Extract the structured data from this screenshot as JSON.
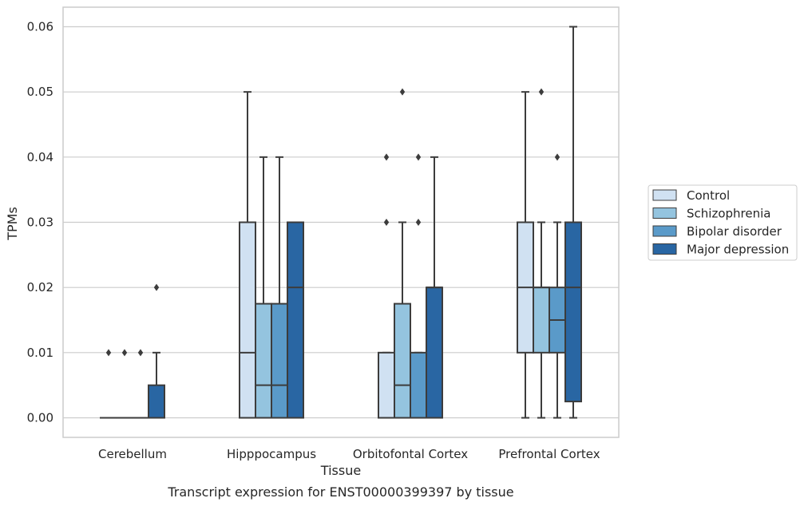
{
  "chart_data": {
    "type": "box",
    "title": "",
    "caption": "Transcript expression for ENST00000399397 by tissue",
    "xlabel": "Tissue",
    "ylabel": "TPMs",
    "ylim": [
      -0.003,
      0.063
    ],
    "yticks": [
      "0.00",
      "0.01",
      "0.02",
      "0.03",
      "0.04",
      "0.05",
      "0.06"
    ],
    "grid": "horizontal",
    "legend_position": "right",
    "categories": [
      "Cerebellum",
      "Hipppocampus",
      "Orbitofontal Cortex",
      "Prefrontal Cortex"
    ],
    "series": [
      {
        "name": "Control",
        "color": "#d0e1f2",
        "boxes": [
          {
            "whislo": 0,
            "q1": 0,
            "med": 0,
            "q3": 0,
            "whishi": 0,
            "fliers": [
              0.01
            ]
          },
          {
            "whislo": 0,
            "q1": 0,
            "med": 0.01,
            "q3": 0.03,
            "whishi": 0.05,
            "fliers": []
          },
          {
            "whislo": 0,
            "q1": 0,
            "med": 0,
            "q3": 0.01,
            "whishi": 0.01,
            "fliers": [
              0.03,
              0.04
            ]
          },
          {
            "whislo": 0,
            "q1": 0.01,
            "med": 0.02,
            "q3": 0.03,
            "whishi": 0.05,
            "fliers": []
          }
        ]
      },
      {
        "name": "Schizophrenia",
        "color": "#94c4df",
        "boxes": [
          {
            "whislo": 0,
            "q1": 0,
            "med": 0,
            "q3": 0,
            "whishi": 0,
            "fliers": [
              0.01
            ]
          },
          {
            "whislo": 0,
            "q1": 0,
            "med": 0.005,
            "q3": 0.0175,
            "whishi": 0.04,
            "fliers": []
          },
          {
            "whislo": 0,
            "q1": 0,
            "med": 0.005,
            "q3": 0.0175,
            "whishi": 0.03,
            "fliers": [
              0.05
            ]
          },
          {
            "whislo": 0,
            "q1": 0.01,
            "med": 0.02,
            "q3": 0.02,
            "whishi": 0.03,
            "fliers": [
              0.05
            ]
          }
        ]
      },
      {
        "name": "Bipolar disorder",
        "color": "#5a9ac9",
        "boxes": [
          {
            "whislo": 0,
            "q1": 0,
            "med": 0,
            "q3": 0,
            "whishi": 0,
            "fliers": [
              0.01
            ]
          },
          {
            "whislo": 0,
            "q1": 0,
            "med": 0.005,
            "q3": 0.0175,
            "whishi": 0.04,
            "fliers": []
          },
          {
            "whislo": 0,
            "q1": 0,
            "med": 0,
            "q3": 0.01,
            "whishi": 0.01,
            "fliers": [
              0.03,
              0.04
            ]
          },
          {
            "whislo": 0,
            "q1": 0.01,
            "med": 0.015,
            "q3": 0.02,
            "whishi": 0.03,
            "fliers": [
              0.04
            ]
          }
        ]
      },
      {
        "name": "Major depression",
        "color": "#2966a3",
        "boxes": [
          {
            "whislo": 0,
            "q1": 0,
            "med": 0,
            "q3": 0.005,
            "whishi": 0.01,
            "fliers": [
              0.02
            ]
          },
          {
            "whislo": 0,
            "q1": 0,
            "med": 0.02,
            "q3": 0.03,
            "whishi": 0.03,
            "fliers": []
          },
          {
            "whislo": 0,
            "q1": 0,
            "med": 0.02,
            "q3": 0.02,
            "whishi": 0.04,
            "fliers": []
          },
          {
            "whislo": 0,
            "q1": 0.0025,
            "med": 0.02,
            "q3": 0.03,
            "whishi": 0.06,
            "fliers": []
          }
        ]
      }
    ]
  }
}
